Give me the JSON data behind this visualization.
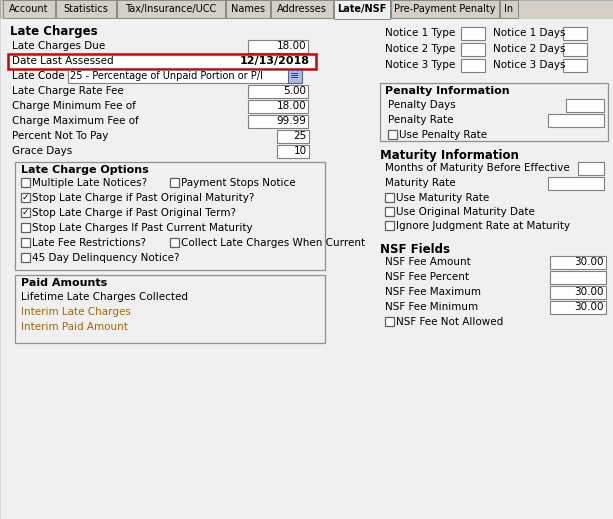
{
  "bg_color": "#f0f0f0",
  "tab_bar_color": "#d4d0c8",
  "tabs": [
    "Account",
    "Statistics",
    "Tax/Insurance/UCC",
    "Names",
    "Addresses",
    "Late/NSF",
    "Pre-Payment Penalty",
    "In"
  ],
  "tab_widths": [
    52,
    60,
    108,
    44,
    62,
    56,
    108,
    18
  ],
  "active_tab": "Late/NSF",
  "colors": {
    "white": "#ffffff",
    "light_gray": "#f0f0f0",
    "mid_gray": "#d4d0c8",
    "black": "#000000",
    "red": "#cc0000",
    "blue_link": "#aa6600",
    "border": "#808080",
    "tab_active_bg": "#f0f0f0",
    "tab_inactive_bg": "#d4d0c8",
    "penalty_box_bg": "#e8e8e8"
  }
}
